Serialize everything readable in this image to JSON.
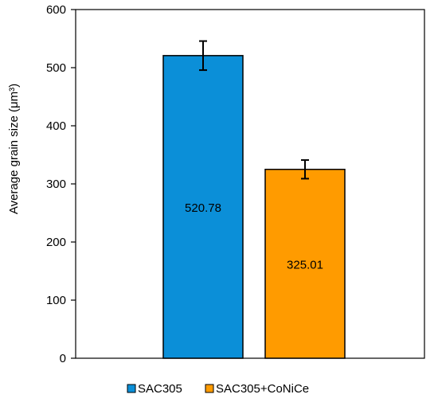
{
  "chart_data": {
    "type": "bar",
    "title": "",
    "xlabel": "",
    "ylabel": "Average grain size (μm³)",
    "ylim": [
      0,
      600
    ],
    "yticks": [
      0,
      100,
      200,
      300,
      400,
      500,
      600
    ],
    "grid": false,
    "legend_position": "bottom",
    "series": [
      {
        "name": "SAC305",
        "value": 520.78,
        "error": 25,
        "color": "#0B8FD8"
      },
      {
        "name": "SAC305+CoNiCe",
        "value": 325.01,
        "error": 16,
        "color": "#FF9B00"
      }
    ],
    "data_labels": [
      "520.78",
      "325.01"
    ]
  }
}
